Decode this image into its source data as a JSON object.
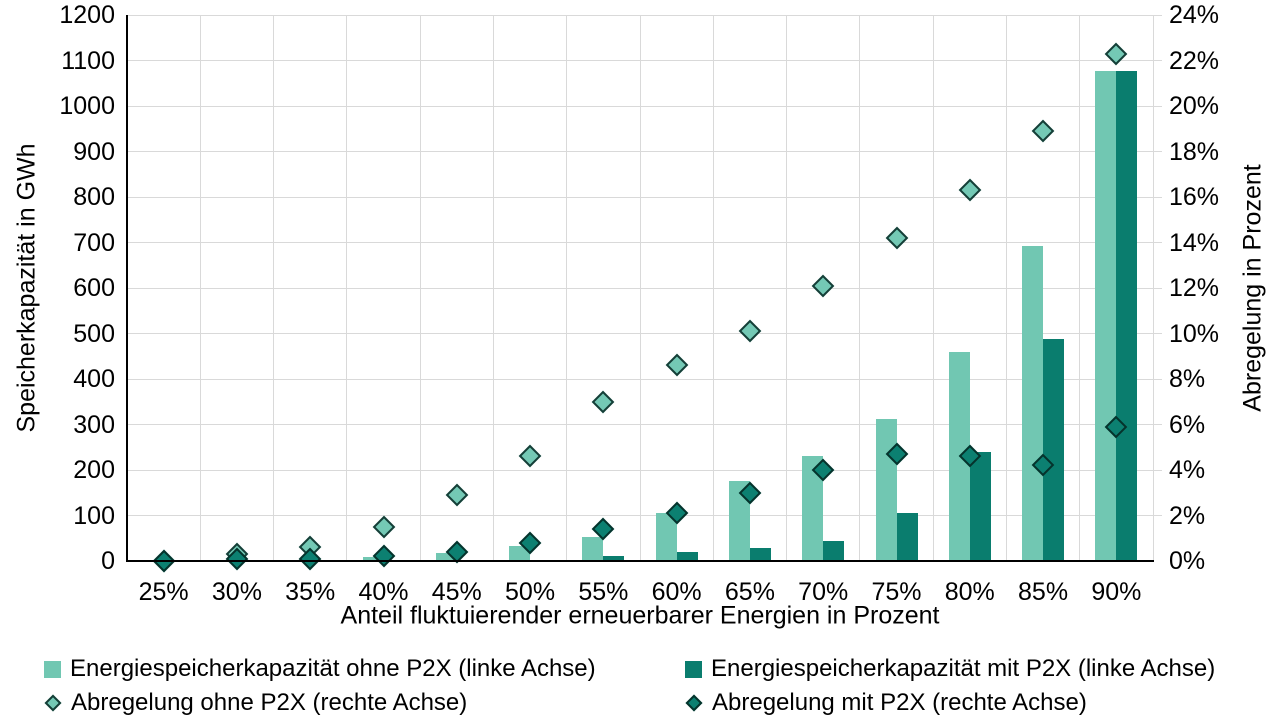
{
  "chart_data": {
    "type": "bar",
    "subtype": "dual-axis bar + diamond scatter",
    "categories": [
      "25%",
      "30%",
      "35%",
      "40%",
      "45%",
      "50%",
      "55%",
      "60%",
      "65%",
      "70%",
      "75%",
      "80%",
      "85%",
      "90%"
    ],
    "series": [
      {
        "name": "Energiespeicherkapazität ohne P2X (linke Achse)",
        "type": "bar",
        "axis": "left",
        "color": "#71C7B2",
        "values": [
          0,
          1,
          2,
          8,
          18,
          34,
          53,
          105,
          175,
          230,
          312,
          460,
          692,
          1076
        ]
      },
      {
        "name": "Energiespeicherkapazität mit P2X (linke Achse)",
        "type": "bar",
        "axis": "left",
        "color": "#0A7D6E",
        "values": [
          0,
          0,
          1,
          1,
          2,
          3,
          10,
          20,
          28,
          44,
          105,
          239,
          489,
          1076
        ]
      },
      {
        "name": "Abregelung ohne P2X (rechte Achse)",
        "type": "scatter-diamond",
        "axis": "right",
        "color": "#74C9B5",
        "outline": "#153E37",
        "values": [
          0.0,
          0.3,
          0.6,
          1.5,
          2.9,
          4.6,
          7.0,
          8.6,
          10.1,
          12.1,
          14.2,
          16.3,
          18.9,
          22.3
        ]
      },
      {
        "name": "Abregelung mit P2X (rechte Achse)",
        "type": "scatter-diamond",
        "axis": "right",
        "color": "#0C8071",
        "outline": "#05332C",
        "values": [
          0.0,
          0.1,
          0.1,
          0.2,
          0.4,
          0.8,
          1.4,
          2.1,
          3.0,
          4.0,
          4.7,
          4.6,
          4.2,
          5.9
        ]
      }
    ],
    "left_axis": {
      "label": "Speicherkapazität in GWh",
      "min": 0,
      "max": 1200,
      "step": 100,
      "ticks": [
        "0",
        "100",
        "200",
        "300",
        "400",
        "500",
        "600",
        "700",
        "800",
        "900",
        "1000",
        "1100",
        "1200"
      ]
    },
    "right_axis": {
      "label": "Abregelung in Prozent",
      "min": 0,
      "max": 24,
      "step": 2,
      "ticks": [
        "0%",
        "2%",
        "4%",
        "6%",
        "8%",
        "10%",
        "12%",
        "14%",
        "16%",
        "18%",
        "20%",
        "22%",
        "24%"
      ]
    },
    "x_axis": {
      "label": "Anteil fluktuierender erneuerbarer Energien in Prozent"
    },
    "grid": true,
    "legend_position": "bottom",
    "colors": {
      "gridline": "#D9D9D9",
      "axis": "#000000",
      "text": "#000000",
      "background": "#FFFFFF"
    }
  }
}
